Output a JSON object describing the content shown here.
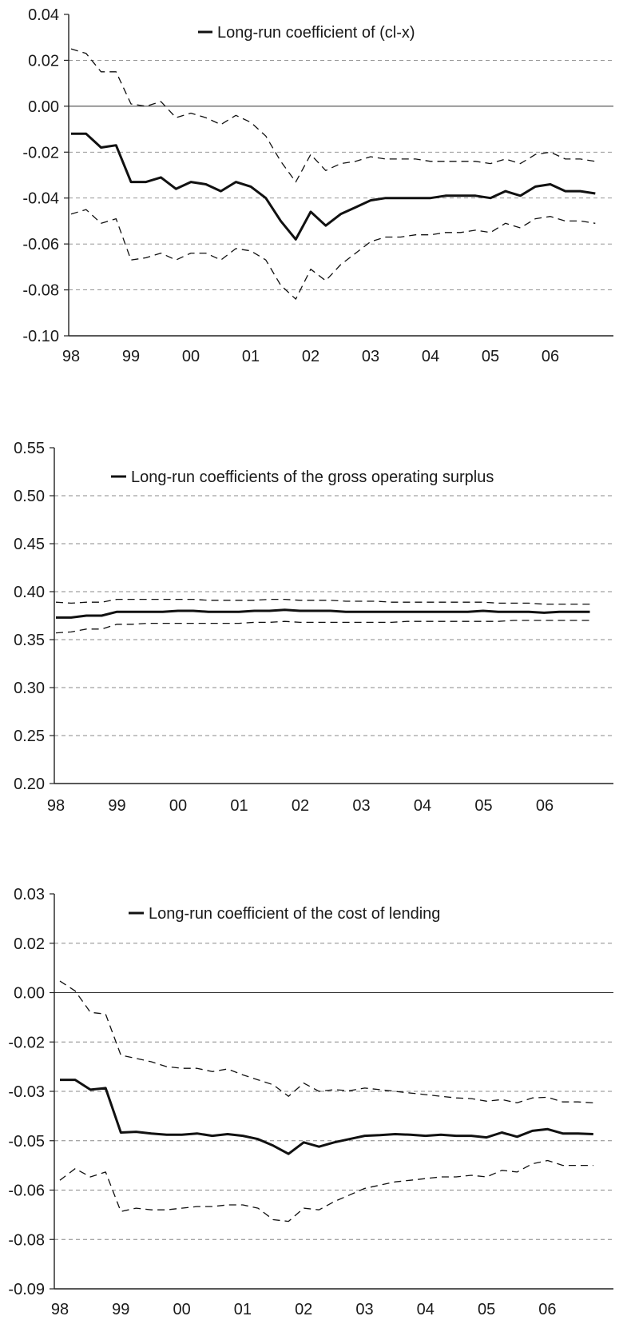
{
  "chart_data": [
    {
      "type": "line",
      "title": "",
      "xlabel": "",
      "ylabel": "",
      "x_tick_labels": [
        "98",
        "99",
        "00",
        "01",
        "02",
        "03",
        "04",
        "05",
        "06"
      ],
      "y_tick_labels": [
        "0.04",
        "0.02",
        "0.00",
        "-0.02",
        "-0.04",
        "-0.06",
        "-0.08",
        "-0.10"
      ],
      "ylim": [
        -0.1,
        0.04
      ],
      "grid": true,
      "legend_position": "top-center",
      "series": [
        {
          "name": "Long-run coefficient of (cl-x)",
          "style": "solid-thick",
          "values": [
            -0.012,
            -0.012,
            -0.018,
            -0.017,
            -0.033,
            -0.033,
            -0.031,
            -0.036,
            -0.033,
            -0.034,
            -0.037,
            -0.033,
            -0.035,
            -0.04,
            -0.05,
            -0.058,
            -0.046,
            -0.052,
            -0.047,
            -0.044,
            -0.041,
            -0.04,
            -0.04,
            -0.04,
            -0.04,
            -0.039,
            -0.039,
            -0.039,
            -0.04,
            -0.037,
            -0.039,
            -0.035,
            -0.034,
            -0.037,
            -0.037,
            -0.038
          ]
        },
        {
          "name": "",
          "style": "dashed",
          "values": [
            0.025,
            0.023,
            0.015,
            0.015,
            0.001,
            0.0,
            0.002,
            -0.005,
            -0.003,
            -0.005,
            -0.008,
            -0.004,
            -0.007,
            -0.013,
            -0.024,
            -0.033,
            -0.021,
            -0.028,
            -0.025,
            -0.024,
            -0.022,
            -0.023,
            -0.023,
            -0.023,
            -0.024,
            -0.024,
            -0.024,
            -0.024,
            -0.025,
            -0.023,
            -0.025,
            -0.021,
            -0.02,
            -0.023,
            -0.023,
            -0.024
          ]
        },
        {
          "name": "",
          "style": "dashed",
          "values": [
            -0.047,
            -0.045,
            -0.051,
            -0.049,
            -0.067,
            -0.066,
            -0.064,
            -0.067,
            -0.064,
            -0.064,
            -0.067,
            -0.062,
            -0.063,
            -0.067,
            -0.078,
            -0.084,
            -0.071,
            -0.076,
            -0.069,
            -0.064,
            -0.059,
            -0.057,
            -0.057,
            -0.056,
            -0.056,
            -0.055,
            -0.055,
            -0.054,
            -0.055,
            -0.051,
            -0.053,
            -0.049,
            -0.048,
            -0.05,
            -0.05,
            -0.051
          ]
        }
      ]
    },
    {
      "type": "line",
      "title": "",
      "xlabel": "",
      "ylabel": "",
      "x_tick_labels": [
        "98",
        "99",
        "00",
        "01",
        "02",
        "03",
        "04",
        "05",
        "06"
      ],
      "y_tick_labels": [
        "0.55",
        "0.50",
        "0.45",
        "0.40",
        "0.35",
        "0.30",
        "0.25",
        "0.20"
      ],
      "ylim": [
        0.2,
        0.55
      ],
      "grid": true,
      "legend_position": "top-center",
      "series": [
        {
          "name": "Long-run coefficients of the gross operating surplus",
          "style": "solid-thick",
          "values": [
            0.373,
            0.373,
            0.375,
            0.375,
            0.379,
            0.379,
            0.379,
            0.379,
            0.38,
            0.38,
            0.379,
            0.379,
            0.379,
            0.38,
            0.38,
            0.381,
            0.38,
            0.38,
            0.38,
            0.379,
            0.379,
            0.379,
            0.379,
            0.379,
            0.379,
            0.379,
            0.379,
            0.379,
            0.38,
            0.379,
            0.379,
            0.379,
            0.378,
            0.379,
            0.379,
            0.379
          ]
        },
        {
          "name": "",
          "style": "dashed",
          "values": [
            0.389,
            0.388,
            0.389,
            0.389,
            0.392,
            0.392,
            0.392,
            0.392,
            0.392,
            0.392,
            0.391,
            0.391,
            0.391,
            0.391,
            0.392,
            0.392,
            0.391,
            0.391,
            0.391,
            0.39,
            0.39,
            0.39,
            0.389,
            0.389,
            0.389,
            0.389,
            0.389,
            0.389,
            0.389,
            0.388,
            0.388,
            0.388,
            0.387,
            0.387,
            0.387,
            0.387
          ]
        },
        {
          "name": "",
          "style": "dashed",
          "values": [
            0.357,
            0.358,
            0.361,
            0.361,
            0.366,
            0.366,
            0.367,
            0.367,
            0.367,
            0.367,
            0.367,
            0.367,
            0.367,
            0.368,
            0.368,
            0.369,
            0.368,
            0.368,
            0.368,
            0.368,
            0.368,
            0.368,
            0.368,
            0.369,
            0.369,
            0.369,
            0.369,
            0.369,
            0.369,
            0.369,
            0.37,
            0.37,
            0.37,
            0.37,
            0.37,
            0.37
          ]
        }
      ]
    },
    {
      "type": "line",
      "title": "",
      "xlabel": "",
      "ylabel": "",
      "x_tick_labels": [
        "98",
        "99",
        "00",
        "01",
        "02",
        "03",
        "04",
        "05",
        "06"
      ],
      "y_tick_labels": [
        "0.03",
        "0.02",
        "0.00",
        "-0.02",
        "-0.03",
        "-0.05",
        "-0.06",
        "-0.08",
        "-0.09"
      ],
      "ylim": [
        -0.09,
        0.03
      ],
      "grid": true,
      "legend_position": "top-center",
      "series": [
        {
          "name": "Long-run coefficient of the cost of lending",
          "style": "solid-thick",
          "values": [
            -0.0265,
            -0.0265,
            -0.0295,
            -0.029,
            -0.0425,
            -0.0423,
            -0.0428,
            -0.0432,
            -0.0432,
            -0.0428,
            -0.0435,
            -0.043,
            -0.0435,
            -0.0445,
            -0.0465,
            -0.049,
            -0.0455,
            -0.0468,
            -0.0455,
            -0.0445,
            -0.0435,
            -0.0433,
            -0.043,
            -0.0432,
            -0.0435,
            -0.0432,
            -0.0435,
            -0.0435,
            -0.044,
            -0.0425,
            -0.0438,
            -0.042,
            -0.0415,
            -0.0428,
            -0.0428,
            -0.043
          ]
        },
        {
          "name": "",
          "style": "dashed",
          "values": [
            0.0035,
            0.0005,
            -0.006,
            -0.0065,
            -0.019,
            -0.02,
            -0.021,
            -0.0225,
            -0.023,
            -0.023,
            -0.024,
            -0.0232,
            -0.025,
            -0.0265,
            -0.028,
            -0.0315,
            -0.0275,
            -0.03,
            -0.0295,
            -0.0298,
            -0.029,
            -0.0295,
            -0.03,
            -0.0305,
            -0.031,
            -0.0315,
            -0.032,
            -0.0322,
            -0.033,
            -0.0325,
            -0.0335,
            -0.032,
            -0.0318,
            -0.0332,
            -0.0332,
            -0.0335
          ]
        },
        {
          "name": "",
          "style": "dashed",
          "values": [
            -0.057,
            -0.0535,
            -0.056,
            -0.0545,
            -0.0665,
            -0.0655,
            -0.066,
            -0.066,
            -0.0655,
            -0.065,
            -0.065,
            -0.0645,
            -0.0645,
            -0.0655,
            -0.069,
            -0.0695,
            -0.0655,
            -0.066,
            -0.0635,
            -0.0615,
            -0.0595,
            -0.0585,
            -0.0575,
            -0.057,
            -0.0565,
            -0.056,
            -0.056,
            -0.0555,
            -0.056,
            -0.054,
            -0.0545,
            -0.052,
            -0.051,
            -0.0525,
            -0.0525,
            -0.0525
          ]
        }
      ]
    }
  ]
}
